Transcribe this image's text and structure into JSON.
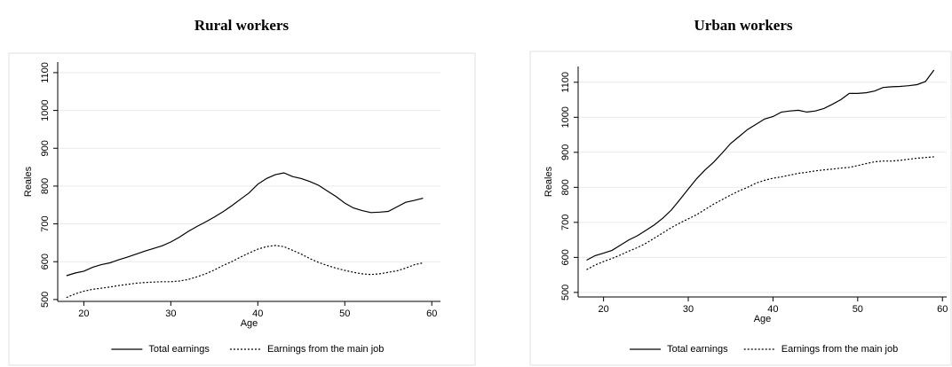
{
  "chart_data": [
    {
      "type": "line",
      "title": "Rural workers",
      "xlabel": "Age",
      "ylabel": "Reales",
      "x": [
        18,
        19,
        20,
        21,
        22,
        23,
        24,
        25,
        26,
        27,
        28,
        29,
        30,
        31,
        32,
        33,
        34,
        35,
        36,
        37,
        38,
        39,
        40,
        41,
        42,
        43,
        44,
        45,
        46,
        47,
        48,
        49,
        50,
        51,
        52,
        53,
        54,
        55,
        56,
        57,
        58,
        59
      ],
      "xlim": [
        17,
        61
      ],
      "xticks": [
        20,
        30,
        40,
        50,
        60
      ],
      "ylim": [
        495,
        1128
      ],
      "yticks": [
        500,
        600,
        700,
        800,
        900,
        1000,
        1100
      ],
      "grid": true,
      "series": [
        {
          "name": "Total earnings",
          "color": "#000000",
          "dash": "solid",
          "values": [
            563,
            570,
            575,
            585,
            592,
            597,
            605,
            612,
            620,
            628,
            635,
            642,
            652,
            665,
            680,
            693,
            705,
            718,
            732,
            748,
            765,
            782,
            805,
            820,
            830,
            835,
            825,
            820,
            812,
            802,
            787,
            772,
            755,
            742,
            735,
            730,
            731,
            733,
            745,
            757,
            762,
            768
          ]
        },
        {
          "name": "Earnings from the main job",
          "color": "#000000",
          "dash": "dotted",
          "values": [
            505,
            515,
            522,
            527,
            530,
            533,
            537,
            540,
            543,
            545,
            546,
            547,
            547,
            549,
            553,
            560,
            568,
            578,
            590,
            600,
            612,
            623,
            633,
            640,
            643,
            640,
            630,
            620,
            608,
            598,
            590,
            583,
            577,
            572,
            568,
            566,
            568,
            572,
            576,
            583,
            592,
            597
          ]
        }
      ]
    },
    {
      "type": "line",
      "title": "Urban workers",
      "xlabel": "Age",
      "ylabel": "Reales",
      "x": [
        18,
        19,
        20,
        21,
        22,
        23,
        24,
        25,
        26,
        27,
        28,
        29,
        30,
        31,
        32,
        33,
        34,
        35,
        36,
        37,
        38,
        39,
        40,
        41,
        42,
        43,
        44,
        45,
        46,
        47,
        48,
        49,
        50,
        51,
        52,
        53,
        54,
        55,
        56,
        57,
        58,
        59
      ],
      "xlim": [
        17,
        60.5
      ],
      "xticks": [
        20,
        30,
        40,
        50,
        60
      ],
      "ylim": [
        487,
        1145
      ],
      "yticks": [
        500,
        600,
        700,
        800,
        900,
        1000,
        1100
      ],
      "grid": true,
      "series": [
        {
          "name": "Total earnings",
          "color": "#000000",
          "dash": "solid",
          "values": [
            592,
            605,
            612,
            620,
            635,
            650,
            662,
            677,
            693,
            712,
            735,
            765,
            795,
            825,
            850,
            872,
            898,
            925,
            945,
            965,
            980,
            995,
            1002,
            1015,
            1018,
            1020,
            1015,
            1018,
            1025,
            1037,
            1050,
            1068,
            1068,
            1070,
            1075,
            1085,
            1087,
            1088,
            1090,
            1093,
            1102,
            1135
          ]
        },
        {
          "name": "Earnings from the main job",
          "color": "#000000",
          "dash": "dotted",
          "values": [
            565,
            578,
            588,
            597,
            607,
            618,
            628,
            640,
            655,
            670,
            685,
            698,
            710,
            722,
            737,
            752,
            765,
            778,
            790,
            800,
            812,
            820,
            826,
            830,
            835,
            840,
            843,
            847,
            850,
            852,
            855,
            857,
            862,
            868,
            873,
            875,
            875,
            877,
            880,
            883,
            885,
            887
          ]
        }
      ]
    }
  ]
}
